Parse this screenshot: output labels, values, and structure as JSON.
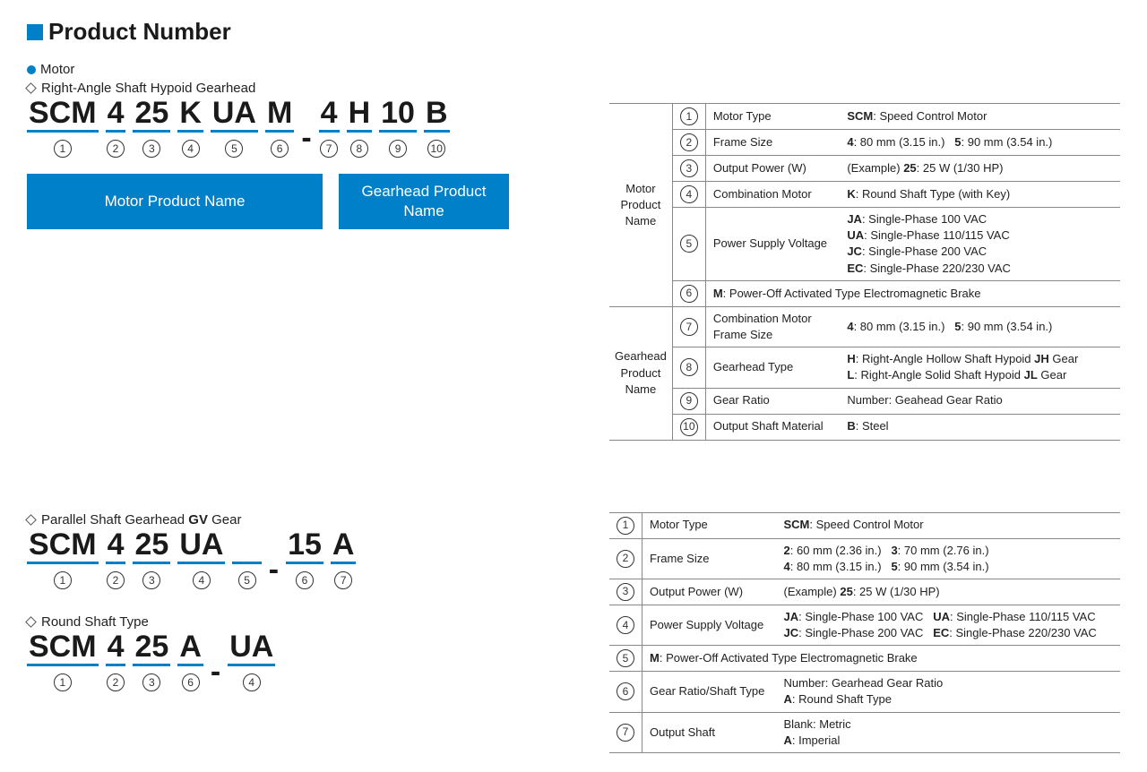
{
  "theme": {
    "accent": "#0080c8",
    "text": "#1a1a1a",
    "border": "#888888",
    "bg": "#ffffff",
    "code_font_size": 34,
    "title_font_size": 26
  },
  "title": "Product Number",
  "motor_heading": "Motor",
  "sectionA": {
    "subtype": "Right-Angle Shaft Hypoid Gearhead",
    "segments": [
      "SCM",
      "4",
      "25",
      "K",
      "UA",
      "M",
      "4",
      "H",
      "10",
      "B"
    ],
    "dash_after_index": 5,
    "numbers": [
      "1",
      "2",
      "3",
      "4",
      "5",
      "6",
      "7",
      "8",
      "9",
      "10"
    ],
    "motor_box": "Motor Product Name",
    "gearhead_box": "Gearhead Product Name",
    "def_groups": [
      {
        "label": "Motor Product Name",
        "rows": [
          {
            "n": "1",
            "name": "Motor Type",
            "val": "<b>SCM</b>: Speed Control Motor"
          },
          {
            "n": "2",
            "name": "Frame Size",
            "val": "<b>4</b>: 80 mm (3.15 in.)&nbsp;&nbsp;&nbsp;<b>5</b>: 90 mm (3.54 in.)"
          },
          {
            "n": "3",
            "name": "Output Power (W)",
            "val": "(Example) <b>25</b>: 25 W (1/30 HP)"
          },
          {
            "n": "4",
            "name": "Combination Motor",
            "val": "<b>K</b>: Round Shaft Type (with Key)"
          },
          {
            "n": "5",
            "name": "Power Supply Voltage",
            "val": "<b>JA</b>: Single-Phase 100 VAC<br><b>UA</b>: Single-Phase 110/115 VAC<br><b>JC</b>: Single-Phase 200 VAC<br><b>EC</b>: Single-Phase 220/230 VAC"
          },
          {
            "n": "6",
            "span": true,
            "val": "<b>M</b>: Power-Off Activated Type Electromagnetic Brake"
          }
        ]
      },
      {
        "label": "Gearhead Product Name",
        "rows": [
          {
            "n": "7",
            "name": "Combination Motor Frame Size",
            "val": "<b>4</b>: 80 mm (3.15 in.)&nbsp;&nbsp;&nbsp;<b>5</b>: 90 mm (3.54 in.)"
          },
          {
            "n": "8",
            "name": "Gearhead Type",
            "val": "<b>H</b>: Right-Angle Hollow Shaft Hypoid <b>JH</b> Gear<br><b>L</b>: Right-Angle Solid Shaft Hypoid <b>JL</b> Gear"
          },
          {
            "n": "9",
            "name": "Gear Ratio",
            "val": "Number: Geahead Gear Ratio"
          },
          {
            "n": "10",
            "name": "Output Shaft Material",
            "val": "<b>B</b>: Steel"
          }
        ]
      }
    ]
  },
  "sectionB": {
    "subtype": "Parallel Shaft Gearhead GV Gear",
    "segments": [
      "SCM",
      "4",
      "25",
      "UA",
      "",
      "15",
      "A"
    ],
    "dash_after_index": 4,
    "numbers": [
      "1",
      "2",
      "3",
      "4",
      "5",
      "6",
      "7"
    ]
  },
  "sectionC": {
    "subtype": "Round Shaft Type",
    "segments": [
      "SCM",
      "4",
      "25",
      "A",
      "UA"
    ],
    "dash_after_index": 3,
    "numbers": [
      "1",
      "2",
      "3",
      "6",
      "4"
    ]
  },
  "def2_rows": [
    {
      "n": "1",
      "name": "Motor Type",
      "val": "<b>SCM</b>: Speed Control Motor"
    },
    {
      "n": "2",
      "name": "Frame Size",
      "val": "<b>2</b>: 60 mm (2.36 in.)&nbsp;&nbsp;&nbsp;<b>3</b>: 70 mm (2.76 in.)<br><b>4</b>: 80 mm (3.15 in.)&nbsp;&nbsp;&nbsp;<b>5</b>: 90 mm (3.54 in.)"
    },
    {
      "n": "3",
      "name": "Output Power (W)",
      "val": "(Example) <b>25</b>: 25 W (1/30 HP)"
    },
    {
      "n": "4",
      "name": "Power Supply Voltage",
      "val": "<b>JA</b>: Single-Phase 100 VAC&nbsp;&nbsp;&nbsp;<b>UA</b>: Single-Phase 110/115 VAC<br><b>JC</b>: Single-Phase 200 VAC&nbsp;&nbsp;&nbsp;<b>EC</b>: Single-Phase 220/230 VAC"
    },
    {
      "n": "5",
      "span": true,
      "val": "<b>M</b>: Power-Off Activated Type Electromagnetic Brake"
    },
    {
      "n": "6",
      "name": "Gear Ratio/Shaft Type",
      "val": "Number: Gearhead Gear Ratio<br><b>A</b>: Round Shaft Type"
    },
    {
      "n": "7",
      "name": "Output Shaft",
      "val": "Blank: Metric<br><b>A</b>: Imperial"
    }
  ]
}
